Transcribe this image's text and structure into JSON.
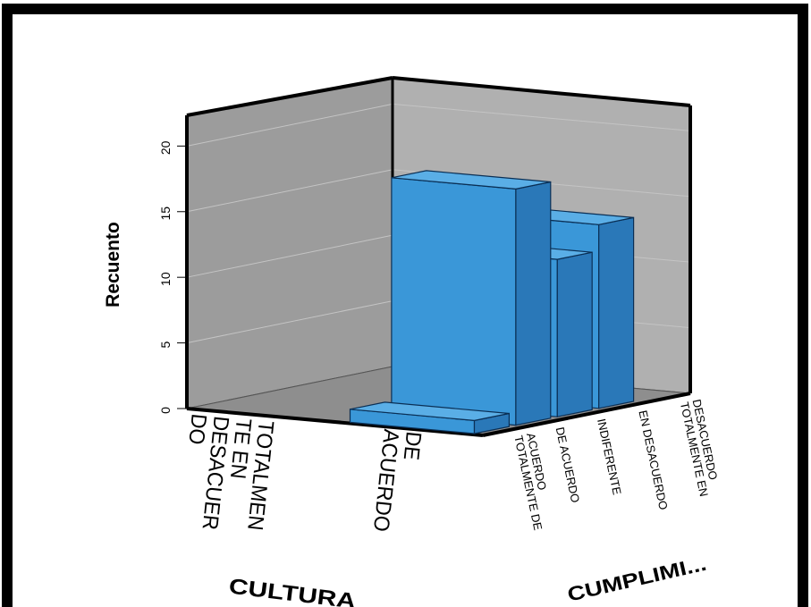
{
  "chart_data": {
    "type": "bar",
    "three_d": true,
    "ylabel": "Recuento",
    "xlabel": "CULTURA",
    "zlabel": "CUMPLIMI...",
    "y_ticks": [
      "0",
      "5",
      "10",
      "15",
      "20"
    ],
    "ylim": [
      0,
      22
    ],
    "x_categories": [
      "TOTALMENTE EN DESACUERDO",
      "DE ACUERDO"
    ],
    "z_categories": [
      "TOTALMENTE DE ACUERDO",
      "DE ACUERDO",
      "INDIFERENTE",
      "EN DESACUERDO",
      "TOTALMENTE EN DESACUERDO"
    ],
    "bars": [
      {
        "x": "DE ACUERDO",
        "z": "TOTALMENTE DE ACUERDO",
        "value": 1
      },
      {
        "x": "DE ACUERDO",
        "z": "DE ACUERDO",
        "value": 18
      },
      {
        "x": "DE ACUERDO",
        "z": "INDIFERENTE",
        "value": 12
      },
      {
        "x": "DE ACUERDO",
        "z": "EN DESACUERDO",
        "value": 14
      }
    ],
    "colors": {
      "bar_front": "#3a97d8",
      "bar_side": "#2a78b8",
      "bar_top": "#5aaee6",
      "left_wall": "#9c9c9c",
      "right_wall": "#b0b0b0",
      "floor": "#8e8e8e"
    }
  },
  "x_category_lines": [
    [
      "TOTALMEN",
      "TE EN",
      "DESACUER",
      "DO"
    ],
    [
      "DE",
      "ACUERDO"
    ]
  ],
  "z_category_lines": [
    [
      "TOTALMENTE DE",
      "ACUERDO"
    ],
    [
      "DE ACUERDO"
    ],
    [
      "INDIFERENTE"
    ],
    [
      "EN DESACUERDO"
    ],
    [
      "TOTALMENTE EN",
      "DESACUERDO"
    ]
  ]
}
